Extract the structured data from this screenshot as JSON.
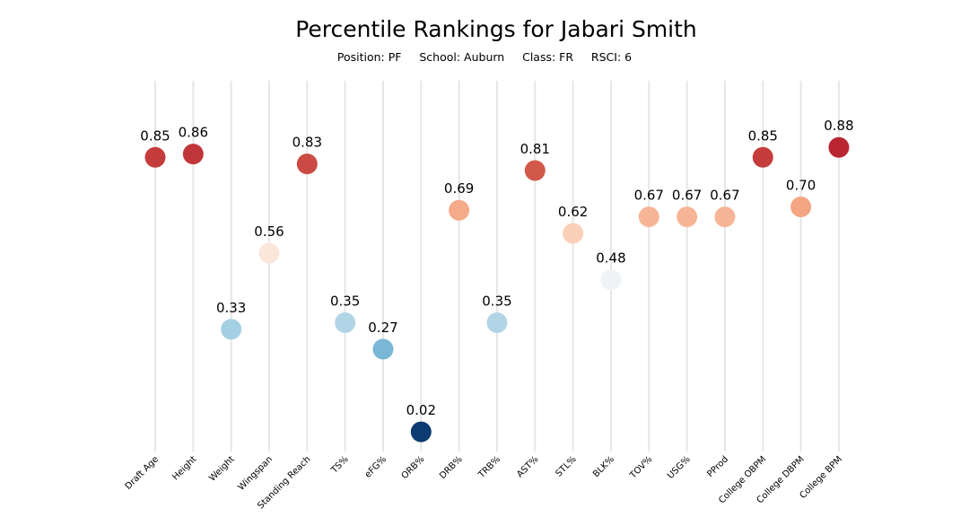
{
  "chart_data": {
    "type": "scatter",
    "title": "Percentile Rankings for Jabari Smith",
    "subtitle": {
      "position": "Position: PF",
      "school": "School: Auburn",
      "class": "Class: FR",
      "rsci": "RSCI: 6"
    },
    "categories": [
      "Draft Age",
      "Height",
      "Weight",
      "Wingspan",
      "Standing Reach",
      "TS%",
      "eFG%",
      "ORB%",
      "DRB%",
      "TRB%",
      "AST%",
      "STL%",
      "BLK%",
      "TOV%",
      "USG%",
      "PProd",
      "College OBPM",
      "College DBPM",
      "College BPM"
    ],
    "values": [
      0.85,
      0.86,
      0.33,
      0.56,
      0.83,
      0.35,
      0.27,
      0.02,
      0.69,
      0.35,
      0.81,
      0.62,
      0.48,
      0.67,
      0.67,
      0.67,
      0.85,
      0.7,
      0.88
    ],
    "value_labels": [
      "0.85",
      "0.86",
      "0.33",
      "0.56",
      "0.83",
      "0.35",
      "0.27",
      "0.02",
      "0.69",
      "0.35",
      "0.81",
      "0.62",
      "0.48",
      "0.67",
      "0.67",
      "0.67",
      "0.85",
      "0.70",
      "0.88"
    ],
    "ylim": [
      0,
      1
    ],
    "colormap": "diverging red-blue (RdBu_r)",
    "grid": false
  }
}
